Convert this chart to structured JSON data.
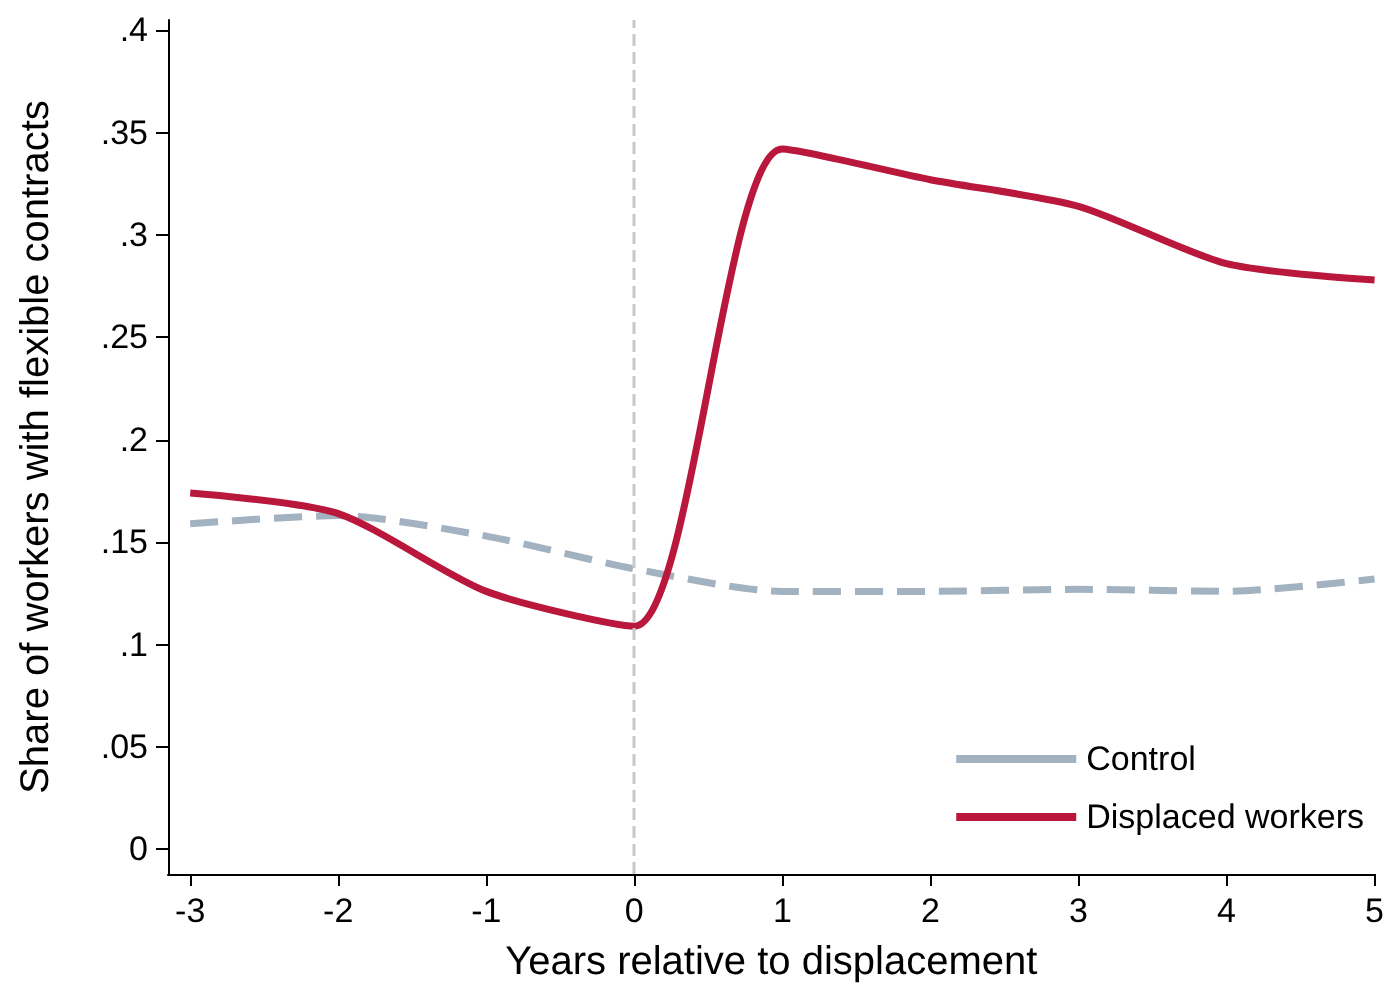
{
  "chart_data": {
    "type": "line",
    "xlabel": "Years relative to displacement",
    "ylabel": "Share of workers with flexible contracts",
    "x": [
      -3,
      -2,
      -1,
      0,
      1,
      2,
      3,
      4,
      5
    ],
    "series": [
      {
        "name": "Control",
        "color": "#a3b2c0",
        "line_style": "dashed",
        "values": [
          0.159,
          0.163,
          0.153,
          0.137,
          0.126,
          0.126,
          0.127,
          0.126,
          0.132
        ]
      },
      {
        "name": "Displaced workers",
        "color": "#b9173c",
        "line_style": "solid",
        "values": [
          0.174,
          0.164,
          0.126,
          0.109,
          0.342,
          0.327,
          0.314,
          0.286,
          0.278
        ]
      }
    ],
    "xlim": [
      -3.15,
      5
    ],
    "xticks": [
      -3,
      -2,
      -1,
      0,
      1,
      2,
      3,
      4,
      5
    ],
    "ylim": [
      -0.012,
      0.405
    ],
    "yticks": [
      0,
      {
        "value": 0.05,
        "label": ".05"
      },
      {
        "value": 0.1,
        "label": ".1"
      },
      {
        "value": 0.15,
        "label": ".15"
      },
      {
        "value": 0.2,
        "label": ".2"
      },
      {
        "value": 0.25,
        "label": ".25"
      },
      {
        "value": 0.3,
        "label": ".3"
      },
      {
        "value": 0.35,
        "label": ".35"
      },
      {
        "value": 0.4,
        "label": ".4"
      }
    ],
    "ref_lines": [
      {
        "axis": "x",
        "value": 0,
        "color": "#c8c8c8",
        "line_style": "dashed"
      }
    ],
    "grid": false,
    "legend": "bottom right",
    "marker": "none"
  }
}
